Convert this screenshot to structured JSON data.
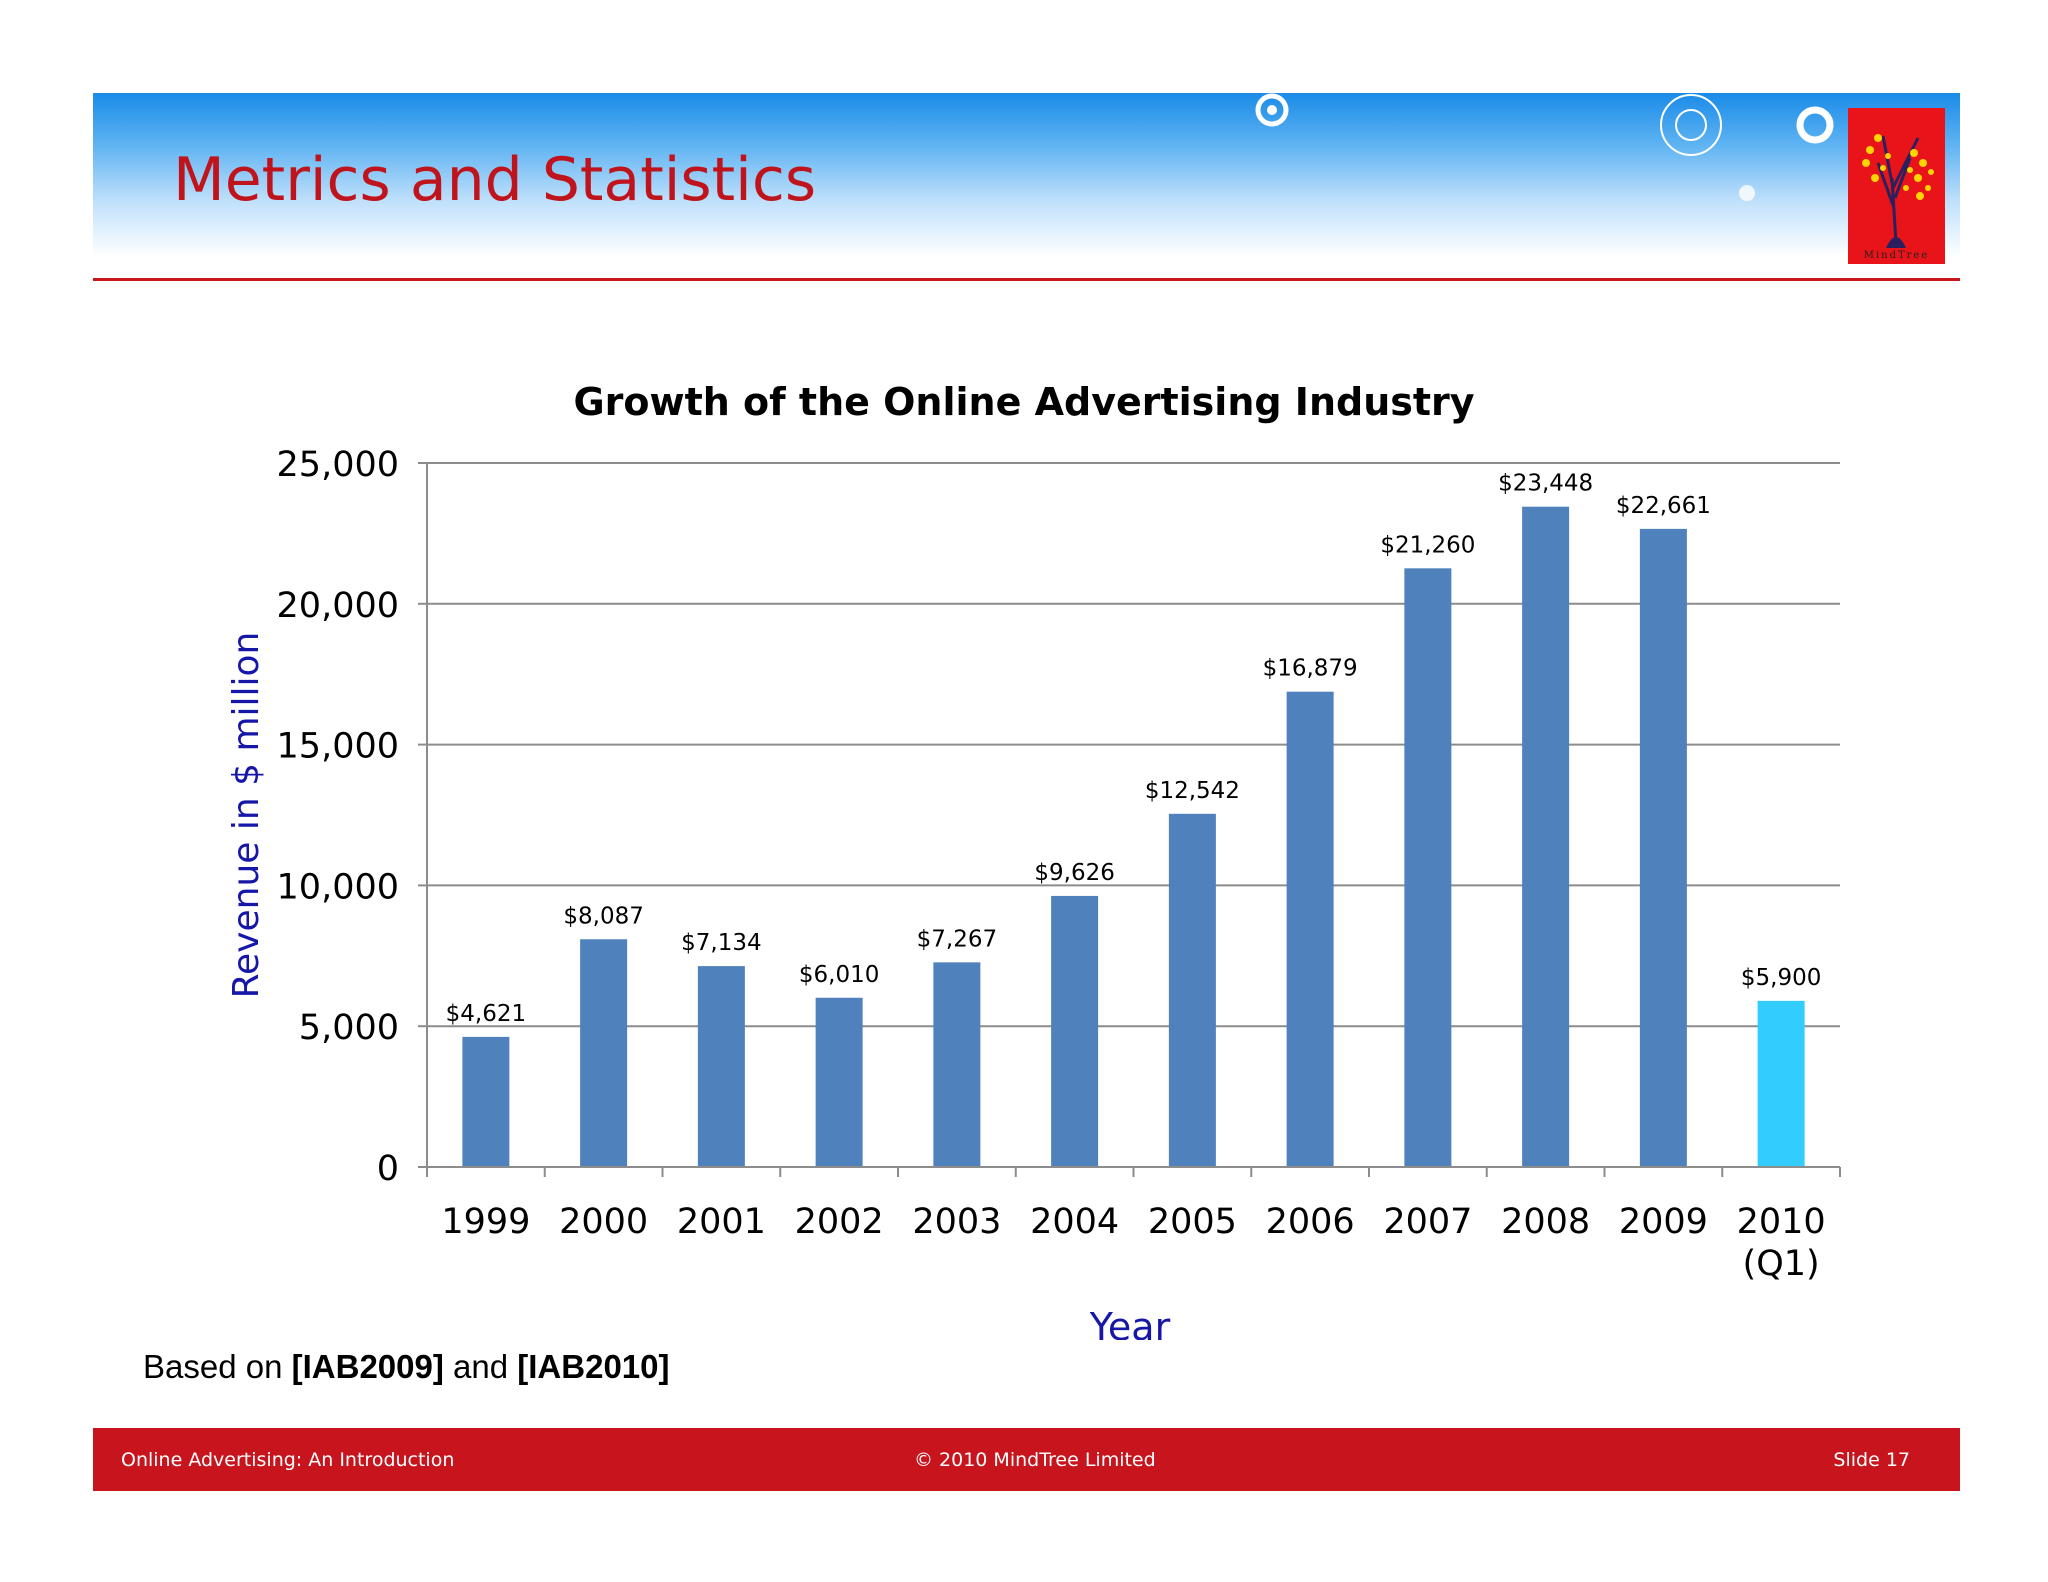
{
  "slide": {
    "title": "Metrics and Statistics",
    "logo_text": "MindTree",
    "source_prefix": "Based on ",
    "source_ref1": "[IAB2009]",
    "source_and": " and ",
    "source_ref2": "[IAB2010]"
  },
  "footer": {
    "left": "Online Advertising: An Introduction",
    "center": "© 2010 MindTree Limited",
    "right": "Slide 17"
  },
  "colors": {
    "bar": "#4f81bd",
    "bar_highlight": "#33ccff",
    "title_red": "#c0141c",
    "axis_title_blue": "#1616a8",
    "footer_red": "#c8141c"
  },
  "chart_data": {
    "type": "bar",
    "title": "Growth of the Online Advertising Industry",
    "xlabel": "Year",
    "ylabel": "Revenue in $ million",
    "categories": [
      "1999",
      "2000",
      "2001",
      "2002",
      "2003",
      "2004",
      "2005",
      "2006",
      "2007",
      "2008",
      "2009",
      "2010\n(Q1)"
    ],
    "values": [
      4621,
      8087,
      7134,
      6010,
      7267,
      9626,
      12542,
      16879,
      21260,
      23448,
      22661,
      5900
    ],
    "data_labels": [
      "$4,621",
      "$8,087",
      "$7,134",
      "$6,010",
      "$7,267",
      "$9,626",
      "$12,542",
      "$16,879",
      "$21,260",
      "$23,448",
      "$22,661",
      "$5,900"
    ],
    "highlight_index": 11,
    "ylim": [
      0,
      25000
    ],
    "yticks": [
      0,
      5000,
      10000,
      15000,
      20000,
      25000
    ],
    "ytick_labels": [
      "0",
      "5,000",
      "10,000",
      "15,000",
      "20,000",
      "25,000"
    ],
    "grid": true,
    "legend": "none"
  }
}
